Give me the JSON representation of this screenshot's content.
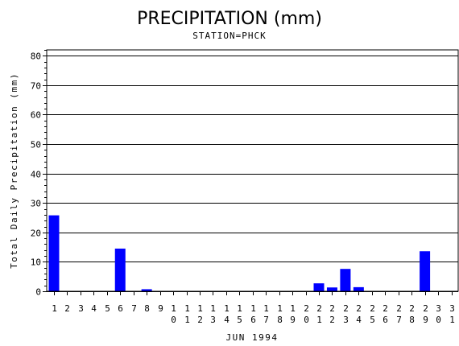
{
  "chart_data": {
    "type": "bar",
    "title": "PRECIPITATION (mm)",
    "subtitle": "STATION=PHCK",
    "xlabel": "JUN 1994",
    "ylabel": "Total Daily Precipitation (mm)",
    "ylim": [
      0,
      82
    ],
    "yticks": [
      0,
      10,
      20,
      30,
      40,
      50,
      60,
      70,
      80
    ],
    "grid": true,
    "bar_color": "#0000ff",
    "categories": [
      "1",
      "2",
      "3",
      "4",
      "5",
      "6",
      "7",
      "8",
      "9",
      "10",
      "11",
      "12",
      "13",
      "14",
      "15",
      "16",
      "17",
      "18",
      "19",
      "20",
      "21",
      "22",
      "23",
      "24",
      "25",
      "26",
      "27",
      "28",
      "29",
      "30",
      "31"
    ],
    "values": [
      25.8,
      0,
      0,
      0,
      0,
      14.5,
      0,
      0.7,
      0,
      0,
      0,
      0,
      0,
      0,
      0,
      0,
      0,
      0,
      0,
      0,
      2.7,
      1.3,
      7.6,
      1.4,
      0,
      0,
      0,
      0,
      13.6,
      0,
      0
    ]
  }
}
